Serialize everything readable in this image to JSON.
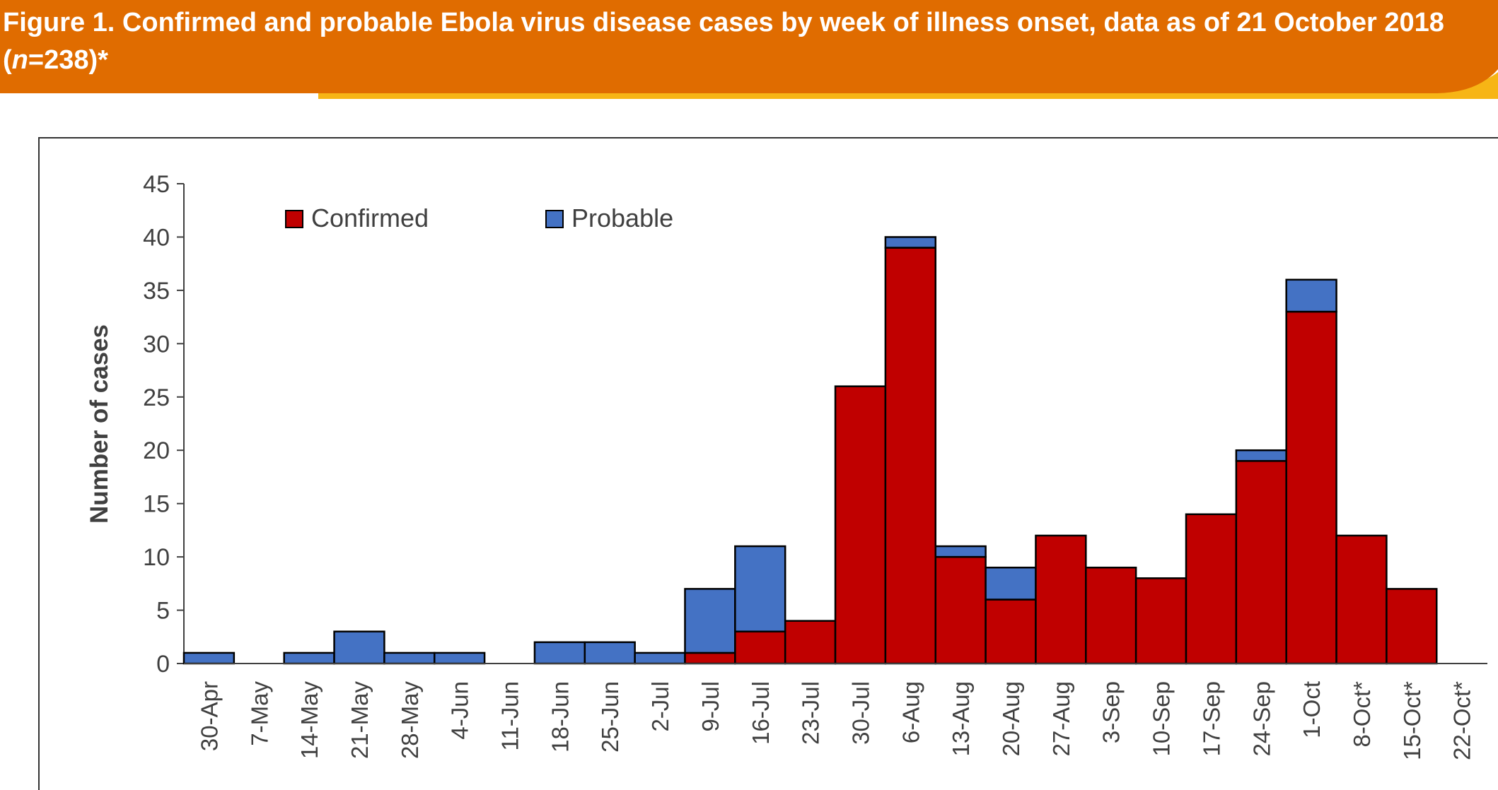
{
  "header": {
    "title_prefix": "Figure 1. Confirmed and probable Ebola virus disease cases by week of illness onset, data as of 21 October 2018 (",
    "title_italic": "n",
    "title_suffix": "=238)*"
  },
  "colors": {
    "header_band": "#E06C00",
    "header_accent": "#F7B515",
    "confirmed": "#C00000",
    "probable": "#4472C4",
    "bar_outline": "#000000"
  },
  "chart_data": {
    "type": "bar",
    "stacked": true,
    "title": "Figure 1. Confirmed and probable Ebola virus disease cases by week of illness onset, data as of 21 October 2018 (n=238)*",
    "xlabel": "",
    "ylabel": "Number of cases",
    "ylim": [
      0,
      45
    ],
    "yticks": [
      0,
      5,
      10,
      15,
      20,
      25,
      30,
      35,
      40,
      45
    ],
    "grid": false,
    "legend_position": "top-left",
    "categories": [
      "30-Apr",
      "7-May",
      "14-May",
      "21-May",
      "28-May",
      "4-Jun",
      "11-Jun",
      "18-Jun",
      "25-Jun",
      "2-Jul",
      "9-Jul",
      "16-Jul",
      "23-Jul",
      "30-Jul",
      "6-Aug",
      "13-Aug",
      "20-Aug",
      "27-Aug",
      "3-Sep",
      "10-Sep",
      "17-Sep",
      "24-Sep",
      "1-Oct",
      "8-Oct*",
      "15-Oct*",
      "22-Oct*"
    ],
    "series": [
      {
        "name": "Confirmed",
        "color": "#C00000",
        "values": [
          0,
          0,
          0,
          0,
          0,
          0,
          0,
          0,
          0,
          0,
          1,
          3,
          4,
          26,
          39,
          10,
          6,
          12,
          9,
          8,
          14,
          19,
          33,
          12,
          7,
          0
        ]
      },
      {
        "name": "Probable",
        "color": "#4472C4",
        "values": [
          1,
          0,
          1,
          3,
          1,
          1,
          0,
          2,
          2,
          1,
          6,
          8,
          0,
          0,
          1,
          1,
          3,
          0,
          0,
          0,
          0,
          1,
          3,
          0,
          0,
          0
        ]
      }
    ]
  }
}
